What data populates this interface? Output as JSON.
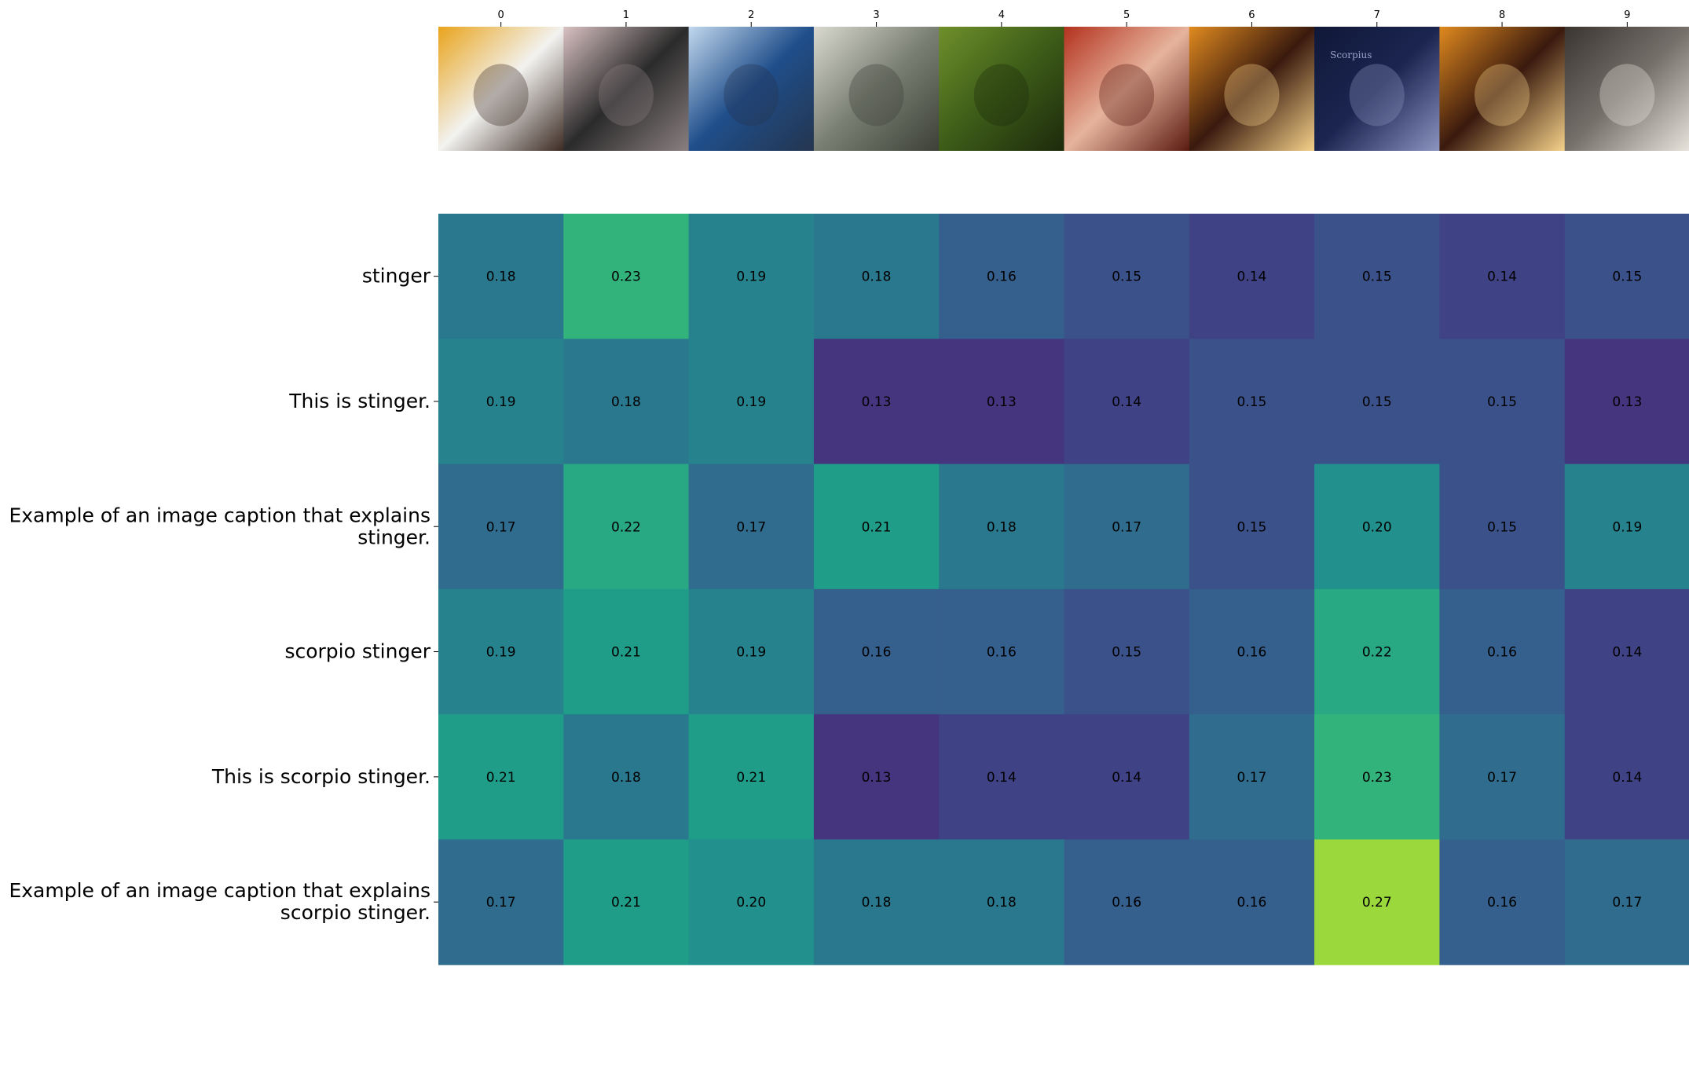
{
  "chart_data": {
    "type": "heatmap",
    "title": "",
    "xlabel": "",
    "ylabel": "",
    "x": [
      "0",
      "1",
      "2",
      "3",
      "4",
      "5",
      "6",
      "7",
      "8",
      "9"
    ],
    "y": [
      [
        "stinger"
      ],
      [
        "This is stinger."
      ],
      [
        "Example of an image caption that explains",
        "stinger."
      ],
      [
        "scorpio stinger"
      ],
      [
        "This is scorpio stinger."
      ],
      [
        "Example of an image caption that explains",
        "scorpio stinger."
      ]
    ],
    "values": [
      [
        0.18,
        0.23,
        0.19,
        0.18,
        0.16,
        0.15,
        0.14,
        0.15,
        0.14,
        0.15
      ],
      [
        0.19,
        0.18,
        0.19,
        0.13,
        0.13,
        0.14,
        0.15,
        0.15,
        0.15,
        0.13
      ],
      [
        0.17,
        0.22,
        0.17,
        0.21,
        0.18,
        0.17,
        0.15,
        0.2,
        0.15,
        0.19
      ],
      [
        0.19,
        0.21,
        0.19,
        0.16,
        0.16,
        0.15,
        0.16,
        0.22,
        0.16,
        0.14
      ],
      [
        0.21,
        0.18,
        0.21,
        0.13,
        0.14,
        0.14,
        0.17,
        0.23,
        0.17,
        0.14
      ],
      [
        0.17,
        0.21,
        0.2,
        0.18,
        0.18,
        0.16,
        0.16,
        0.27,
        0.16,
        0.17
      ]
    ],
    "value_format": "2 decimals",
    "colormap": "viridis",
    "value_range": [
      0.1,
      0.3
    ],
    "grid": false,
    "legend": "none",
    "column_images": [
      {
        "description": "man in white shirt making peace sign against yellow wall",
        "colors": [
          "#e9a41c",
          "#f2f2f0",
          "#3b2a22"
        ]
      },
      {
        "description": "close-up of dark insect abdomen with pointed stinger on pink background",
        "colors": [
          "#d9c1c3",
          "#2b2b2b",
          "#8a7f80"
        ]
      },
      {
        "description": "blue roller coaster loops against sky",
        "colors": [
          "#c2d8ee",
          "#1f4e8a",
          "#24354f"
        ]
      },
      {
        "description": "black and white botanical specimen of plant stems",
        "colors": [
          "#d9d9cf",
          "#7a7f73",
          "#3c4036"
        ]
      },
      {
        "description": "green leaf covered with small insects",
        "colors": [
          "#6f8f2b",
          "#3d5c18",
          "#1d2a0c"
        ]
      },
      {
        "description": "painted hand wearing a ring on red fabric",
        "colors": [
          "#b3321f",
          "#e6b39c",
          "#5a1a10"
        ]
      },
      {
        "description": "glass of iced amber drink on wooden table",
        "colors": [
          "#e08a1f",
          "#3a1a0e",
          "#f5d28a"
        ]
      },
      {
        "description": "night sky with Scorpius constellation lines",
        "colors": [
          "#101838",
          "#1b2550",
          "#8c94c0"
        ],
        "text": "Scorpius"
      },
      {
        "description": "glass of iced amber drink on wooden table",
        "colors": [
          "#e08a1f",
          "#3a1a0e",
          "#f5d28a"
        ]
      },
      {
        "description": "tangled dark roots with white tuber",
        "colors": [
          "#3a3530",
          "#75706a",
          "#e8e4dc"
        ]
      }
    ]
  }
}
